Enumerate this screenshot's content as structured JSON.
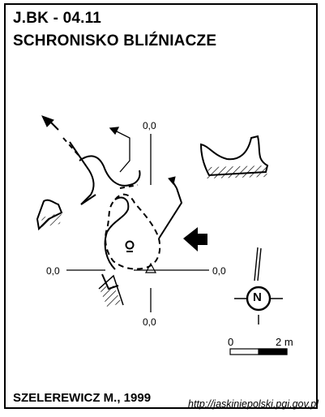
{
  "header": {
    "code": "J.BK - 04.11",
    "name": "SCHRONISKO BLIŹNIACZE"
  },
  "cross_section_labels": {
    "top": "0,0",
    "bottom": "0,0",
    "left": "0,0",
    "right": "0,0"
  },
  "north_arrow": {
    "letter": "N"
  },
  "scale_bar": {
    "start_label": "0",
    "end_label": "2 m"
  },
  "footer": {
    "author": "SZELEREWICZ M., 1999",
    "source": "http://jaskiniepolski.pgi.gov.pl"
  }
}
